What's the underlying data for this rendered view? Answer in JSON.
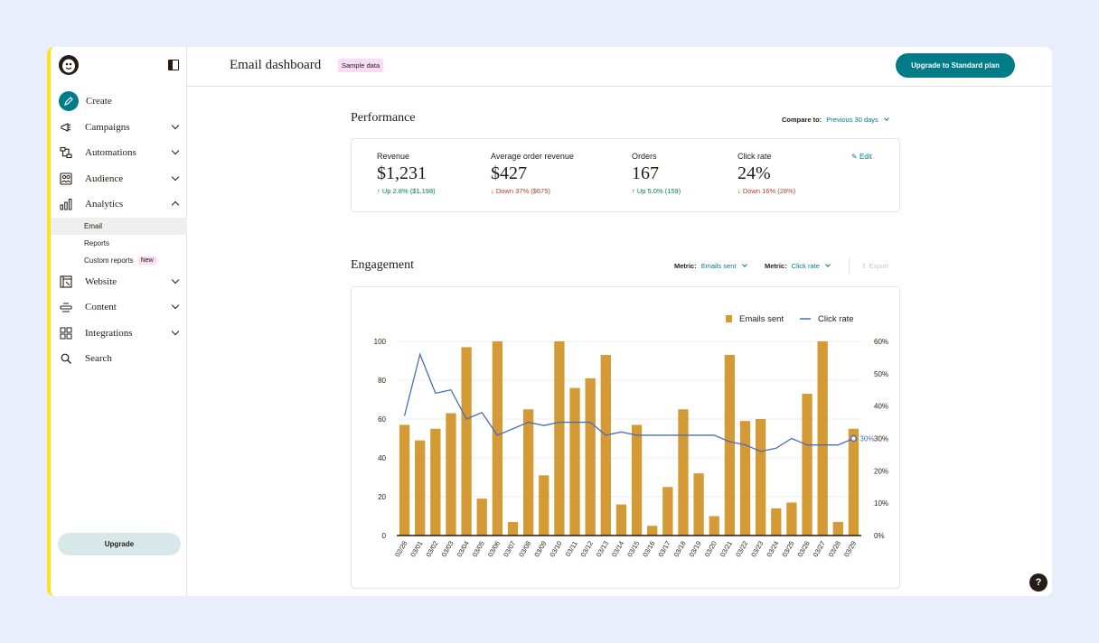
{
  "sidebar": {
    "items": [
      {
        "key": "create",
        "label": "Create",
        "icon": "pencil-icon"
      },
      {
        "key": "campaigns",
        "label": "Campaigns",
        "icon": "megaphone-icon"
      },
      {
        "key": "automations",
        "label": "Automations",
        "icon": "workflow-icon"
      },
      {
        "key": "audience",
        "label": "Audience",
        "icon": "audience-icon"
      },
      {
        "key": "analytics",
        "label": "Analytics",
        "icon": "bar-chart-icon"
      },
      {
        "key": "website",
        "label": "Website",
        "icon": "website-icon"
      },
      {
        "key": "content",
        "label": "Content",
        "icon": "content-icon"
      },
      {
        "key": "integrations",
        "label": "Integrations",
        "icon": "grid-icon"
      },
      {
        "key": "search",
        "label": "Search",
        "icon": "search-icon"
      }
    ],
    "analytics_sub": [
      "Email",
      "Reports",
      "Custom reports"
    ],
    "new_badge": "New",
    "upgrade_label": "Upgrade"
  },
  "header": {
    "title": "Email dashboard",
    "sample_badge": "Sample data",
    "upgrade_label": "Upgrade to Standard plan"
  },
  "performance": {
    "title": "Performance",
    "compare_label": "Compare to:",
    "compare_value": "Previous 30 days",
    "edit_label": "Edit",
    "metrics": [
      {
        "name": "Revenue",
        "value": "$1,231",
        "change": "Up 2.8% ($1,198)",
        "direction": "up"
      },
      {
        "name": "Average order revenue",
        "value": "$427",
        "change": "Down 37% ($675)",
        "direction": "down"
      },
      {
        "name": "Orders",
        "value": "167",
        "change": "Up 5.0% (159)",
        "direction": "up"
      },
      {
        "name": "Click rate",
        "value": "24%",
        "change": "Down 16% (28%)",
        "direction": "down"
      }
    ]
  },
  "engagement": {
    "title": "Engagement",
    "metric1_label": "Metric:",
    "metric1_value": "Emails sent",
    "metric2_label": "Metric:",
    "metric2_value": "Click rate",
    "export_label": "Export"
  },
  "help_label": "?",
  "colors": {
    "accent": "#007c89",
    "bar": "#d49a35",
    "line": "#4a6fb5",
    "brand_yellow": "#ffe01b"
  },
  "chart_data": {
    "type": "bar",
    "categories": [
      "02/28",
      "03/01",
      "03/02",
      "03/03",
      "03/04",
      "03/05",
      "03/06",
      "03/07",
      "03/08",
      "03/09",
      "03/10",
      "03/11",
      "03/12",
      "03/13",
      "03/14",
      "03/15",
      "03/16",
      "03/17",
      "03/18",
      "03/19",
      "03/20",
      "03/21",
      "03/22",
      "03/23",
      "03/24",
      "03/25",
      "03/26",
      "03/27",
      "03/28",
      "03/29"
    ],
    "series": [
      {
        "name": "Emails sent",
        "type": "bar",
        "axis": "left",
        "values": [
          57,
          49,
          55,
          63,
          97,
          19,
          100,
          7,
          65,
          31,
          100,
          76,
          81,
          93,
          16,
          57,
          5,
          25,
          65,
          32,
          10,
          93,
          59,
          60,
          14,
          17,
          73,
          100,
          7,
          55
        ]
      },
      {
        "name": "Click rate",
        "type": "line",
        "axis": "right",
        "values": [
          37,
          56,
          44,
          45,
          36,
          38,
          31,
          33,
          35,
          34,
          35,
          35,
          35,
          31,
          32,
          31,
          31,
          31,
          31,
          31,
          31,
          29,
          28,
          26,
          27,
          30,
          28,
          28,
          28,
          30
        ]
      }
    ],
    "y_left_ticks": [
      "0",
      "20",
      "40",
      "60",
      "80",
      "100"
    ],
    "y_left_range": [
      0,
      100
    ],
    "y_right_ticks": [
      "0%",
      "10%",
      "20%",
      "30%",
      "40%",
      "50%",
      "60%"
    ],
    "y_right_range": [
      0,
      60
    ],
    "end_label": "30%",
    "legend_position": "top-right",
    "grid": true
  }
}
